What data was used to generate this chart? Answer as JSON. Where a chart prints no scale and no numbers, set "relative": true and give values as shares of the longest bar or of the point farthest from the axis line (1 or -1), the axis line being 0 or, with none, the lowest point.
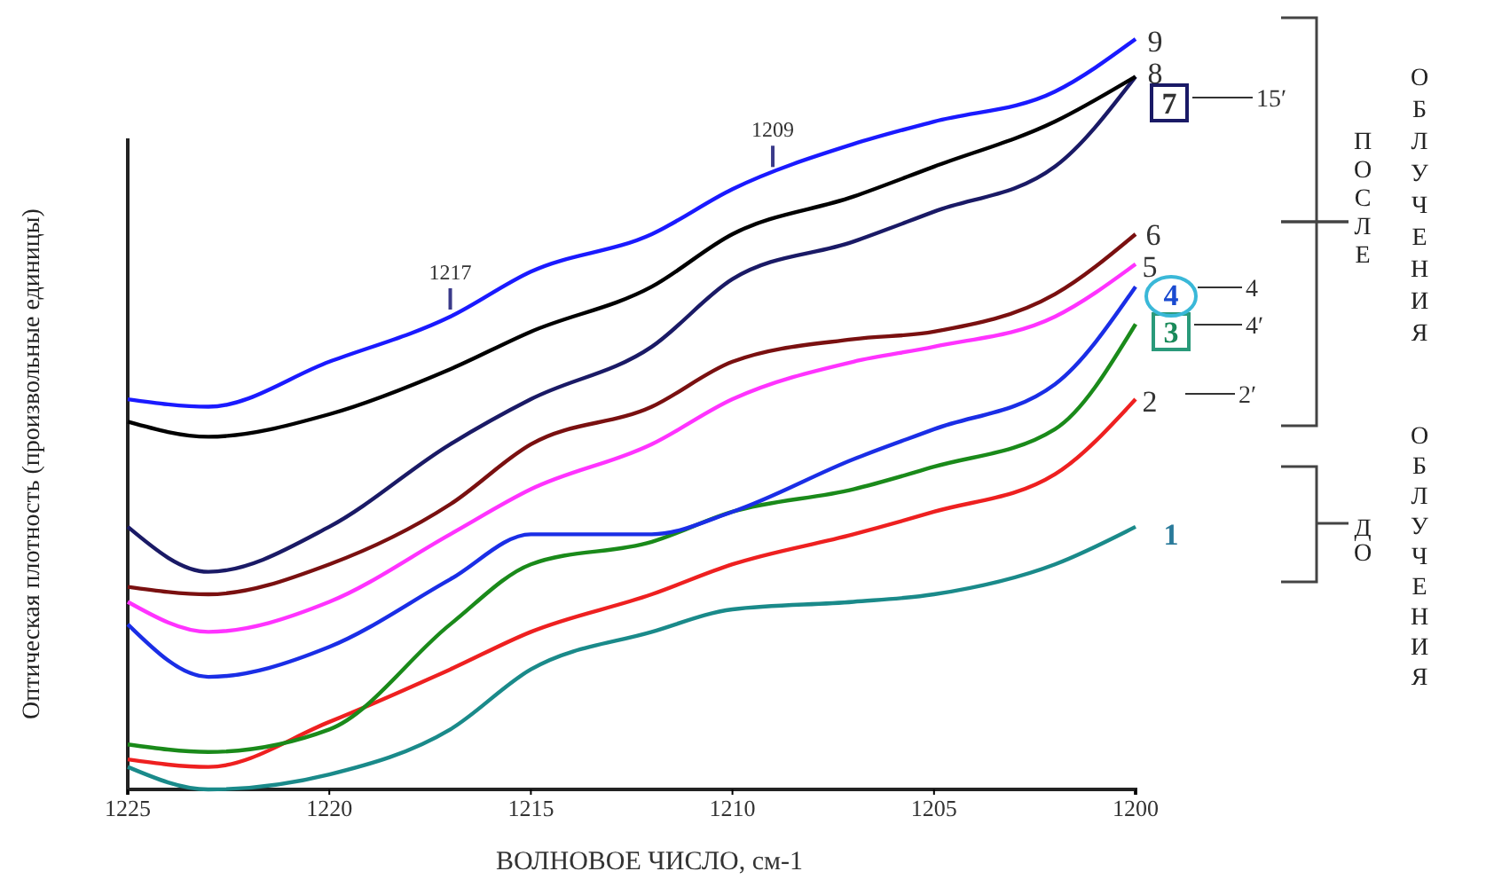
{
  "chart_data": {
    "type": "line",
    "relative": true,
    "xlabel": "ВОЛНОВОЕ ЧИСЛО, см-1",
    "ylabel": "Оптическая  плотность  (произвольные единицы)",
    "x": [
      1225,
      1223,
      1220,
      1217,
      1215,
      1212,
      1210,
      1207,
      1205,
      1202,
      1200
    ],
    "xlim": [
      1225,
      1200
    ],
    "xticks": [
      1225,
      1220,
      1215,
      1210,
      1205,
      1200
    ],
    "grid": false,
    "marker": "none",
    "line_style": "solid",
    "series": [
      {
        "name": "1",
        "color": "#1a8a8a",
        "values": [
          0.03,
          0,
          0.02,
          0.08,
          0.16,
          0.21,
          0.24,
          0.25,
          0.26,
          0.3,
          0.35
        ]
      },
      {
        "name": "2",
        "color": "#ee2020",
        "values": [
          0.04,
          0.03,
          0.09,
          0.16,
          0.21,
          0.26,
          0.3,
          0.34,
          0.37,
          0.42,
          0.52
        ]
      },
      {
        "name": "3",
        "color": "#1a8a1a",
        "values": [
          0.06,
          0.05,
          0.08,
          0.22,
          0.3,
          0.33,
          0.37,
          0.4,
          0.43,
          0.48,
          0.62
        ]
      },
      {
        "name": "4",
        "color": "#1a2ee6",
        "values": [
          0.22,
          0.15,
          0.19,
          0.28,
          0.34,
          0.34,
          0.37,
          0.44,
          0.48,
          0.54,
          0.67
        ]
      },
      {
        "name": "5",
        "color": "#ff33ff",
        "values": [
          0.25,
          0.21,
          0.25,
          0.34,
          0.4,
          0.46,
          0.52,
          0.57,
          0.59,
          0.63,
          0.7
        ]
      },
      {
        "name": "6",
        "color": "#7a1010",
        "values": [
          0.27,
          0.26,
          0.3,
          0.38,
          0.46,
          0.51,
          0.57,
          0.6,
          0.61,
          0.66,
          0.74
        ]
      },
      {
        "name": "7",
        "color": "#1a1a66",
        "values": [
          0.35,
          0.29,
          0.35,
          0.46,
          0.52,
          0.59,
          0.68,
          0.73,
          0.77,
          0.83,
          0.95
        ]
      },
      {
        "name": "8",
        "color": "#000000",
        "values": [
          0.49,
          0.47,
          0.5,
          0.56,
          0.61,
          0.67,
          0.74,
          0.79,
          0.83,
          0.89,
          0.95
        ]
      },
      {
        "name": "9",
        "color": "#1a1aff",
        "values": [
          0.52,
          0.51,
          0.57,
          0.63,
          0.69,
          0.74,
          0.8,
          0.86,
          0.89,
          0.93,
          1
        ]
      }
    ],
    "annotations": [
      {
        "text": "1217",
        "x": 1217,
        "y": 0.63
      },
      {
        "text": "1209",
        "x": 1209,
        "y": 0.82
      },
      "15′",
      "4",
      "4′",
      "2′",
      "ПОСЛЕ",
      "ОБЛУЧЕНИЯ",
      "ДО",
      "ОБЛУЧЕНИЯ"
    ]
  }
}
